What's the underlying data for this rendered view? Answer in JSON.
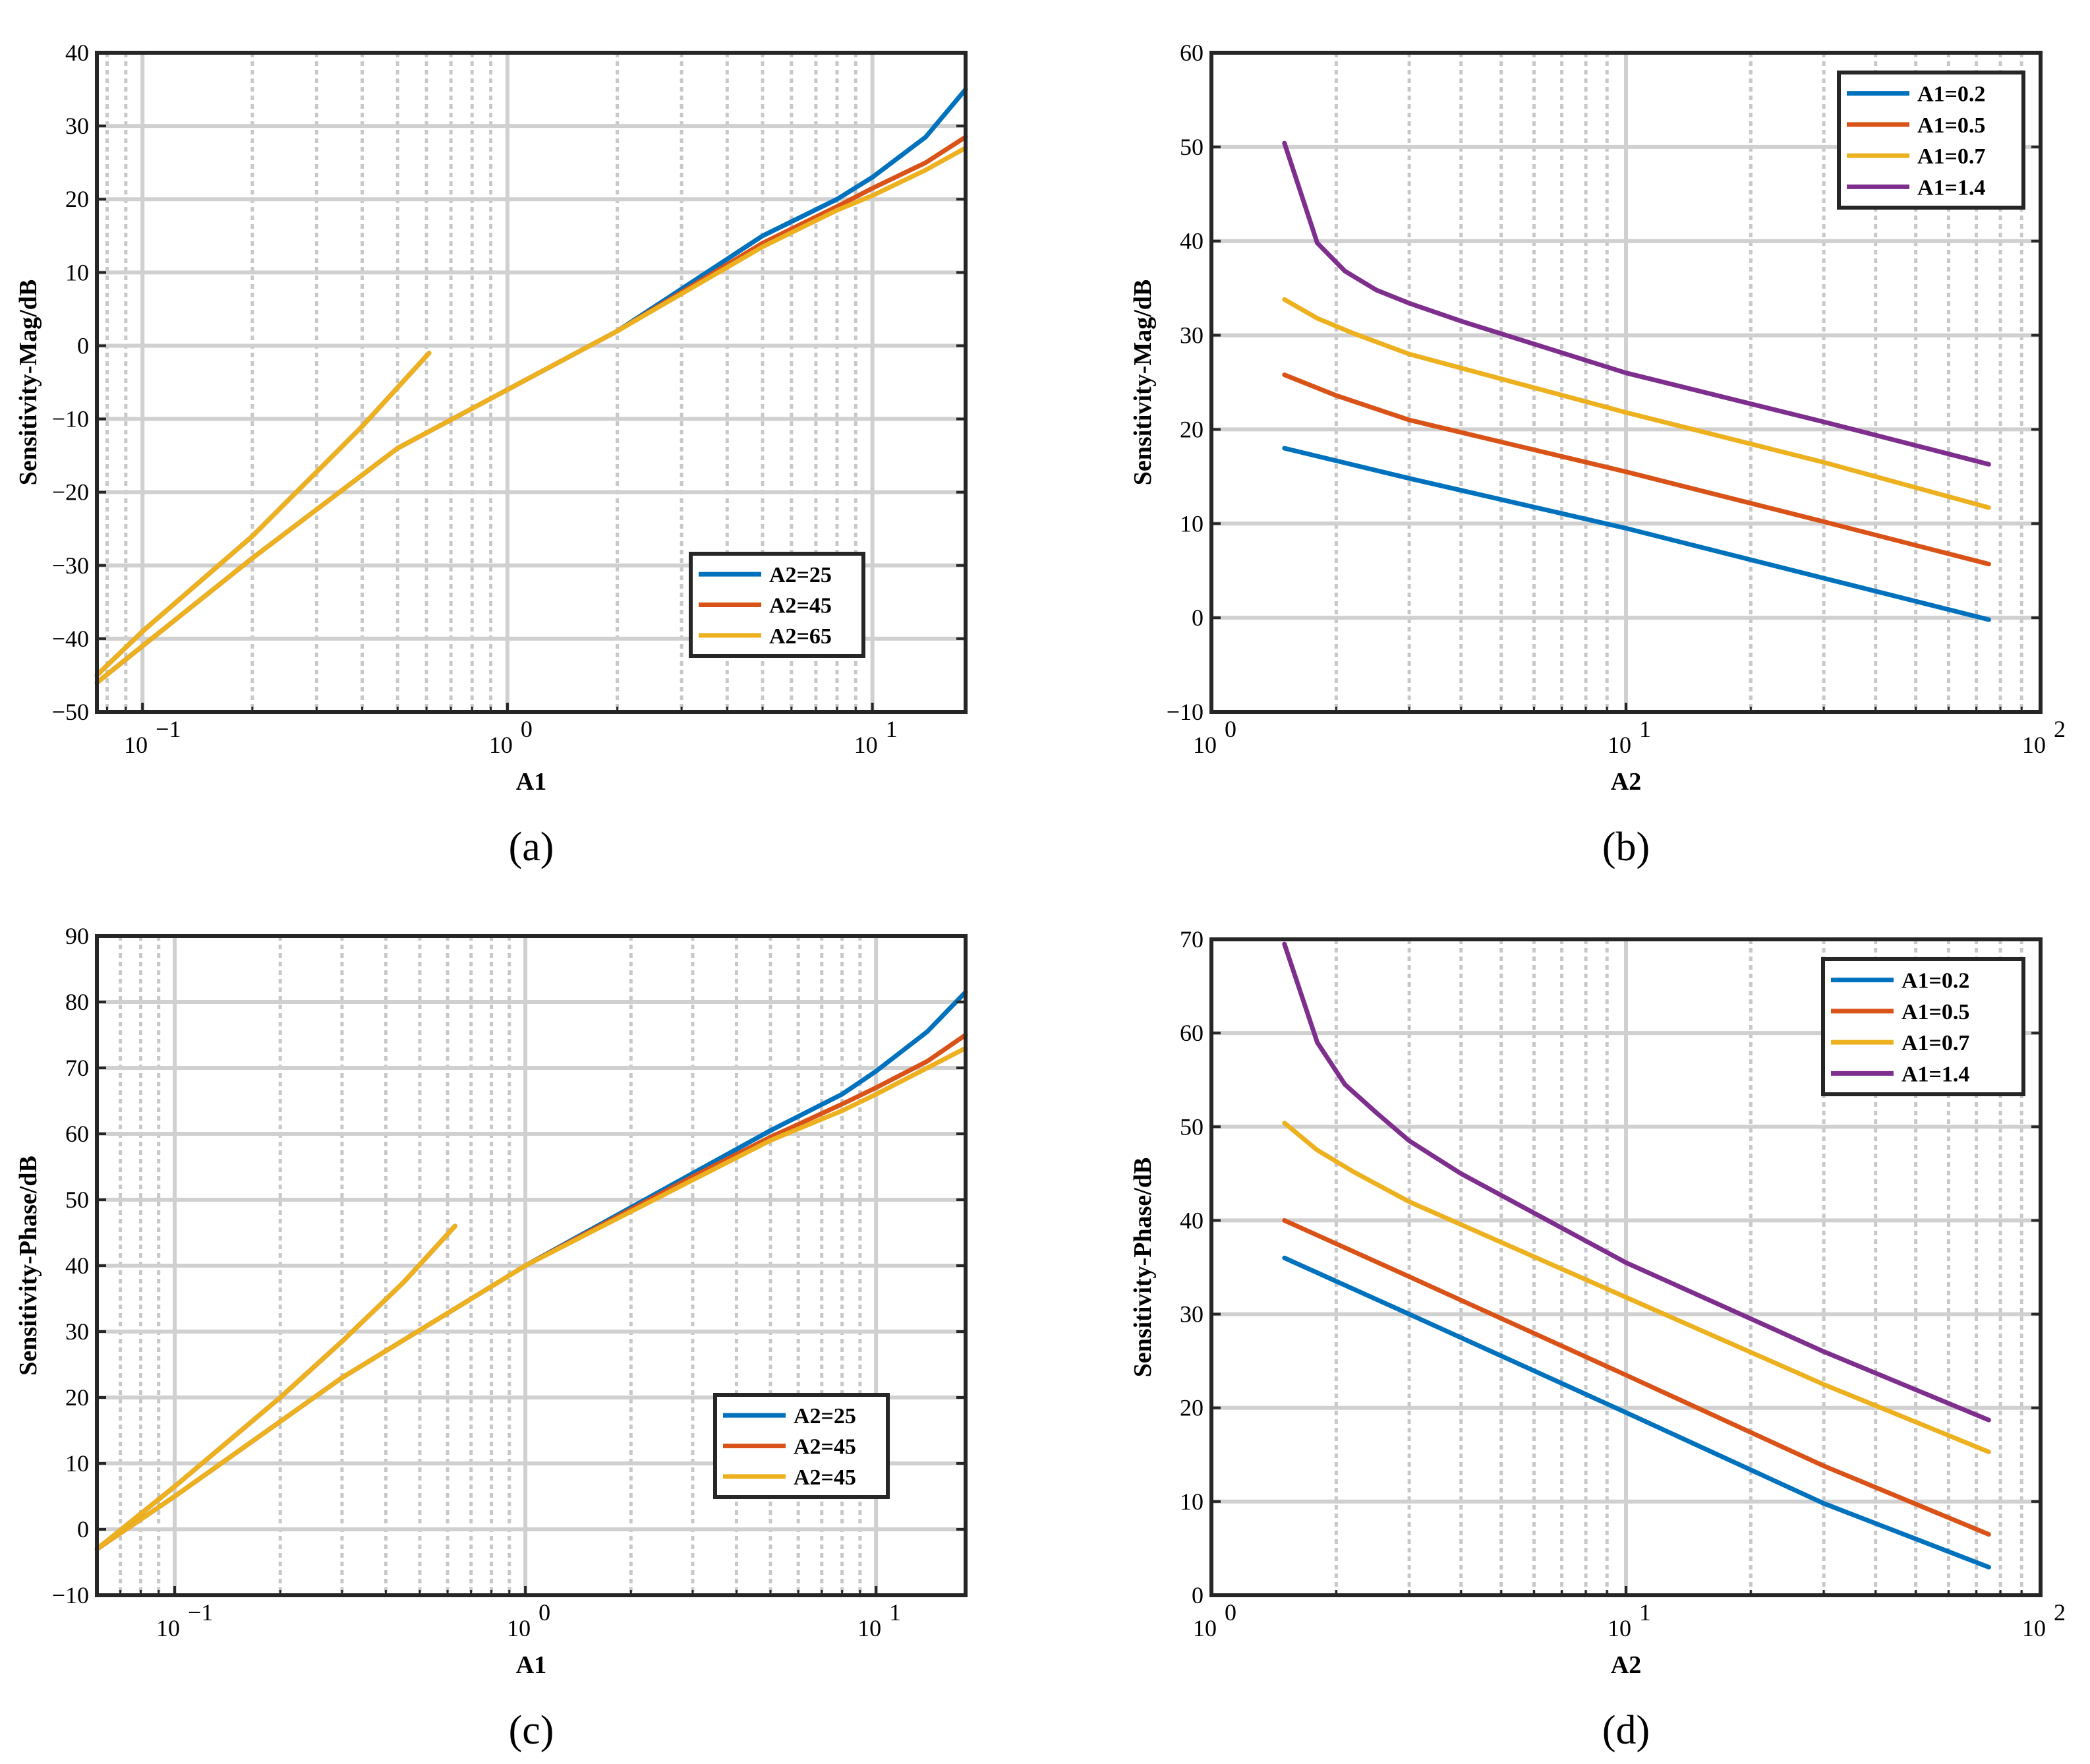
{
  "colors": {
    "blue": "#0072BD",
    "orange": "#D95319",
    "yellow": "#EDB120",
    "purple": "#7E2F8E"
  },
  "chart_data": [
    {
      "id": "a",
      "type": "line",
      "panel_label": "(a)",
      "xlabel": "A1",
      "ylabel": "Sensitivity-Mag/dB",
      "xscale": "log",
      "xlim": [
        0.075,
        18
      ],
      "ylim": [
        -50,
        40
      ],
      "yticks": [
        -50,
        -40,
        -30,
        -20,
        -10,
        0,
        10,
        20,
        30,
        40
      ],
      "ytick_labels": [
        "−50",
        "−40",
        "−30",
        "−20",
        "−10",
        "0",
        "10",
        "20",
        "30",
        "40"
      ],
      "xticks": [
        0.1,
        1,
        10
      ],
      "xtick_labels": [
        "10",
        "10",
        "10"
      ],
      "xtick_exponents": [
        "−1",
        "0",
        "1"
      ],
      "grid": true,
      "legend_position": "bottom-right",
      "series": [
        {
          "name": "A2=25",
          "color": "blue",
          "x": [
            0.075,
            0.1,
            0.2,
            0.5,
            1,
            2,
            5,
            8,
            10,
            14,
            18
          ],
          "y": [
            -46,
            -41,
            -29,
            -14,
            -6,
            2,
            15,
            20,
            23,
            28.5,
            35
          ]
        },
        {
          "name": "A2=45",
          "color": "orange",
          "x": [
            0.075,
            0.1,
            0.2,
            0.5,
            1,
            2,
            5,
            8,
            10,
            14,
            18
          ],
          "y": [
            -46,
            -41,
            -29,
            -14,
            -6,
            2,
            14,
            19,
            21.5,
            25,
            28.5
          ]
        },
        {
          "name": "A2=65",
          "color": "yellow",
          "x": [
            0.075,
            0.1,
            0.2,
            0.5,
            1,
            2,
            5,
            8,
            10,
            14,
            18
          ],
          "y": [
            -46,
            -41,
            -29,
            -14,
            -6,
            2,
            13.5,
            18.5,
            20.5,
            24,
            27
          ]
        },
        {
          "name": "",
          "color": "blue",
          "x": [
            0.075,
            0.1,
            0.2,
            0.4,
            0.61
          ],
          "y": [
            -45,
            -39,
            -26,
            -11,
            -1
          ]
        },
        {
          "name": "",
          "color": "orange",
          "x": [
            0.075,
            0.1,
            0.2,
            0.4,
            0.61
          ],
          "y": [
            -45,
            -39,
            -26,
            -11,
            -1
          ]
        },
        {
          "name": "",
          "color": "yellow",
          "x": [
            0.075,
            0.1,
            0.2,
            0.4,
            0.61
          ],
          "y": [
            -45,
            -39,
            -26,
            -11,
            -1
          ]
        }
      ]
    },
    {
      "id": "b",
      "type": "line",
      "panel_label": "(b)",
      "xlabel": "A2",
      "ylabel": "Sensitivity-Mag/dB",
      "xscale": "log",
      "xlim": [
        1,
        100
      ],
      "ylim": [
        -10,
        60
      ],
      "yticks": [
        -10,
        0,
        10,
        20,
        30,
        40,
        50,
        60
      ],
      "ytick_labels": [
        "−10",
        "0",
        "10",
        "20",
        "30",
        "40",
        "50",
        "60"
      ],
      "xticks": [
        1,
        10,
        100
      ],
      "xtick_labels": [
        "10",
        "10",
        "10"
      ],
      "xtick_exponents": [
        "0",
        "1",
        "2"
      ],
      "grid": true,
      "legend_position": "top-right",
      "series": [
        {
          "name": "A1=0.2",
          "color": "blue",
          "x": [
            1.5,
            3,
            10,
            30,
            75
          ],
          "y": [
            18,
            14.8,
            9.5,
            4.2,
            -0.2
          ]
        },
        {
          "name": "A1=0.5",
          "color": "orange",
          "x": [
            1.5,
            2,
            3,
            10,
            30,
            75
          ],
          "y": [
            25.8,
            23.6,
            21,
            15.5,
            10.2,
            5.7
          ]
        },
        {
          "name": "A1=0.7",
          "color": "yellow",
          "x": [
            1.5,
            1.8,
            2.2,
            3,
            10,
            30,
            75
          ],
          "y": [
            33.8,
            31.8,
            30.2,
            28,
            21.8,
            16.5,
            11.7
          ]
        },
        {
          "name": "A1=1.4",
          "color": "purple",
          "x": [
            1.5,
            1.8,
            2.1,
            2.5,
            3,
            4,
            10,
            30,
            75
          ],
          "y": [
            50.4,
            39.8,
            36.8,
            34.8,
            33.4,
            31.5,
            26,
            20.8,
            16.3
          ]
        }
      ]
    },
    {
      "id": "c",
      "type": "line",
      "panel_label": "(c)",
      "xlabel": "A1",
      "ylabel": "Sensitivity-Phase/dB",
      "xscale": "log",
      "xlim": [
        0.06,
        18
      ],
      "ylim": [
        -10,
        90
      ],
      "yticks": [
        -10,
        0,
        10,
        20,
        30,
        40,
        50,
        60,
        70,
        80,
        90
      ],
      "ytick_labels": [
        "−10",
        "0",
        "10",
        "20",
        "30",
        "40",
        "50",
        "60",
        "70",
        "80",
        "90"
      ],
      "xticks": [
        0.1,
        1,
        10
      ],
      "xtick_labels": [
        "10",
        "10",
        "10"
      ],
      "xtick_exponents": [
        "−1",
        "0",
        "1"
      ],
      "grid": true,
      "legend_position": "bottom-right",
      "series": [
        {
          "name": "A2=25",
          "color": "blue",
          "x": [
            0.06,
            0.1,
            0.3,
            1,
            3,
            5,
            8,
            10,
            14,
            18
          ],
          "y": [
            -3,
            5,
            23,
            40,
            54,
            60.5,
            66,
            69.5,
            75.5,
            81.5
          ]
        },
        {
          "name": "A2=45",
          "color": "orange",
          "x": [
            0.06,
            0.1,
            0.3,
            1,
            3,
            5,
            8,
            10,
            14,
            18
          ],
          "y": [
            -3,
            5,
            23,
            40,
            53.5,
            59.5,
            64.5,
            67,
            71,
            75
          ]
        },
        {
          "name": "A2=45",
          "color": "yellow",
          "x": [
            0.06,
            0.1,
            0.3,
            1,
            3,
            5,
            8,
            10,
            14,
            18
          ],
          "y": [
            -3,
            5,
            23,
            40,
            53,
            59,
            63.5,
            66,
            70,
            73
          ]
        },
        {
          "name": "",
          "color": "blue",
          "x": [
            0.06,
            0.1,
            0.2,
            0.3,
            0.45,
            0.63
          ],
          "y": [
            -3,
            6.5,
            20,
            28.5,
            37.5,
            46
          ]
        },
        {
          "name": "",
          "color": "orange",
          "x": [
            0.06,
            0.1,
            0.2,
            0.3,
            0.45,
            0.63
          ],
          "y": [
            -3,
            6.5,
            20,
            28.5,
            37.5,
            46
          ]
        },
        {
          "name": "",
          "color": "yellow",
          "x": [
            0.06,
            0.1,
            0.2,
            0.3,
            0.45,
            0.63
          ],
          "y": [
            -3,
            6.5,
            20,
            28.5,
            37.5,
            46
          ]
        }
      ]
    },
    {
      "id": "d",
      "type": "line",
      "panel_label": "(d)",
      "xlabel": "A2",
      "ylabel": "Sensitivity-Phase/dB",
      "xscale": "log",
      "xlim": [
        1,
        100
      ],
      "ylim": [
        0,
        70
      ],
      "yticks": [
        0,
        10,
        20,
        30,
        40,
        50,
        60,
        70
      ],
      "ytick_labels": [
        "0",
        "10",
        "20",
        "30",
        "40",
        "50",
        "60",
        "70"
      ],
      "xticks": [
        1,
        10,
        100
      ],
      "xtick_labels": [
        "10",
        "10",
        "10"
      ],
      "xtick_exponents": [
        "0",
        "1",
        "2"
      ],
      "grid": true,
      "legend_position": "top-right",
      "series": [
        {
          "name": "A1=0.2",
          "color": "blue",
          "x": [
            1.5,
            3,
            10,
            30,
            75
          ],
          "y": [
            36,
            30,
            19.5,
            9.8,
            3
          ]
        },
        {
          "name": "A1=0.5",
          "color": "orange",
          "x": [
            1.5,
            3,
            10,
            30,
            75
          ],
          "y": [
            40,
            34,
            23.5,
            13.8,
            6.5
          ]
        },
        {
          "name": "A1=0.7",
          "color": "yellow",
          "x": [
            1.5,
            1.8,
            2.2,
            3,
            10,
            30,
            75
          ],
          "y": [
            50.4,
            47.5,
            45.2,
            42,
            31.8,
            22.5,
            15.3
          ]
        },
        {
          "name": "A1=1.4",
          "color": "purple",
          "x": [
            1.5,
            1.8,
            2.1,
            2.5,
            3,
            4,
            10,
            30,
            75
          ],
          "y": [
            69.5,
            59,
            54.5,
            51.5,
            48.5,
            45,
            35.5,
            26,
            18.7
          ]
        }
      ]
    }
  ]
}
